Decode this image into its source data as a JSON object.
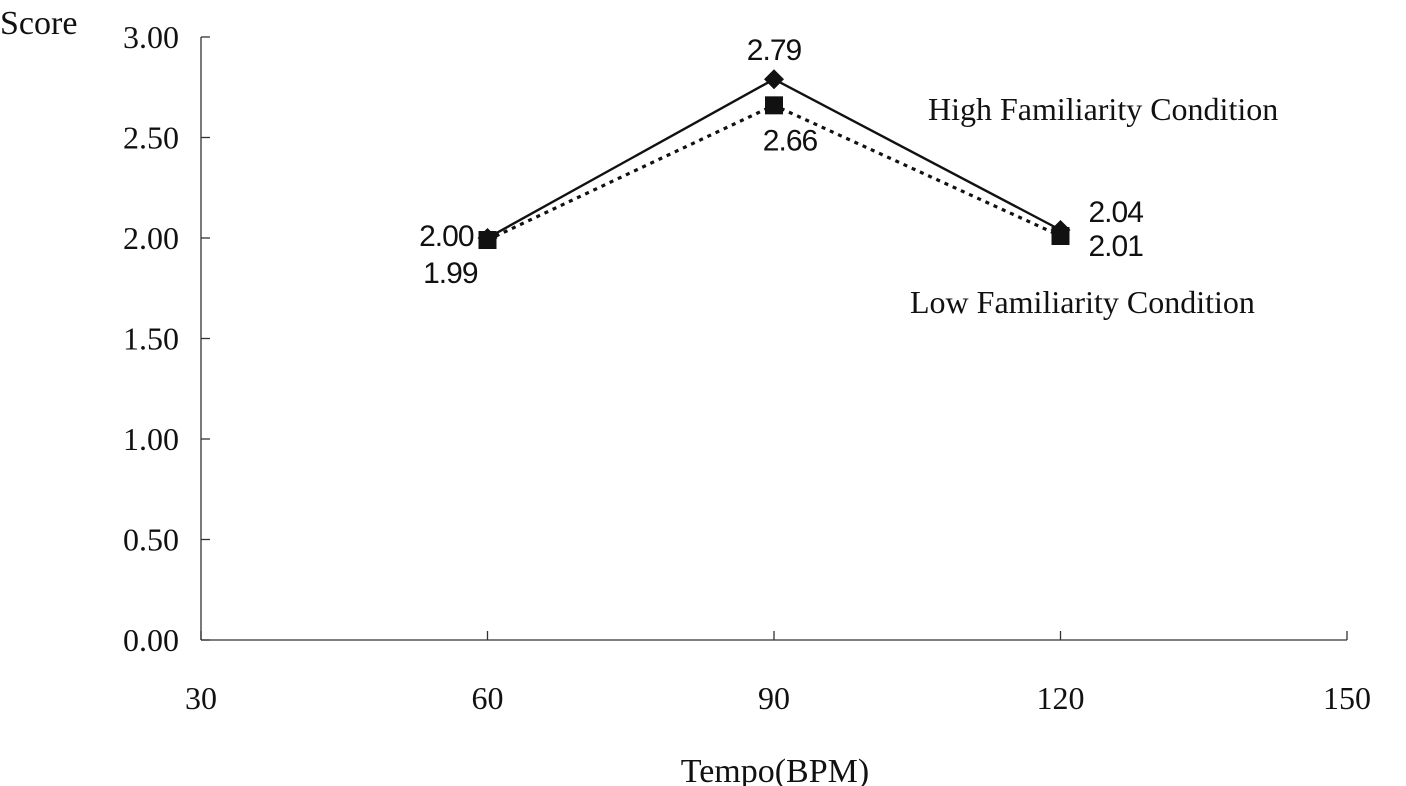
{
  "chart_data": {
    "type": "line",
    "title": "",
    "xlabel": "Tempo(BPM)",
    "ylabel": "Score",
    "xlim": [
      30,
      150
    ],
    "ylim": [
      0,
      3
    ],
    "x_ticks": [
      "30",
      "60",
      "90",
      "120",
      "150"
    ],
    "y_ticks": [
      "0.00",
      "0.50",
      "1.00",
      "1.50",
      "2.00",
      "2.50",
      "3.00"
    ],
    "grid": false,
    "series": [
      {
        "name": "High Familiarity Condition",
        "marker": "diamond",
        "line_style": "solid",
        "x": [
          60,
          90,
          120
        ],
        "values": [
          2.0,
          2.79,
          2.04
        ],
        "labels": [
          "2.00",
          "2.79",
          "2.04"
        ]
      },
      {
        "name": "Low Familiarity Condition",
        "marker": "square",
        "line_style": "dotted",
        "x": [
          60,
          90,
          120
        ],
        "values": [
          1.99,
          2.66,
          2.01
        ],
        "labels": [
          "1.99",
          "2.66",
          "2.01"
        ]
      }
    ]
  },
  "colors": {
    "line": "#111111",
    "axis": "#333333"
  }
}
